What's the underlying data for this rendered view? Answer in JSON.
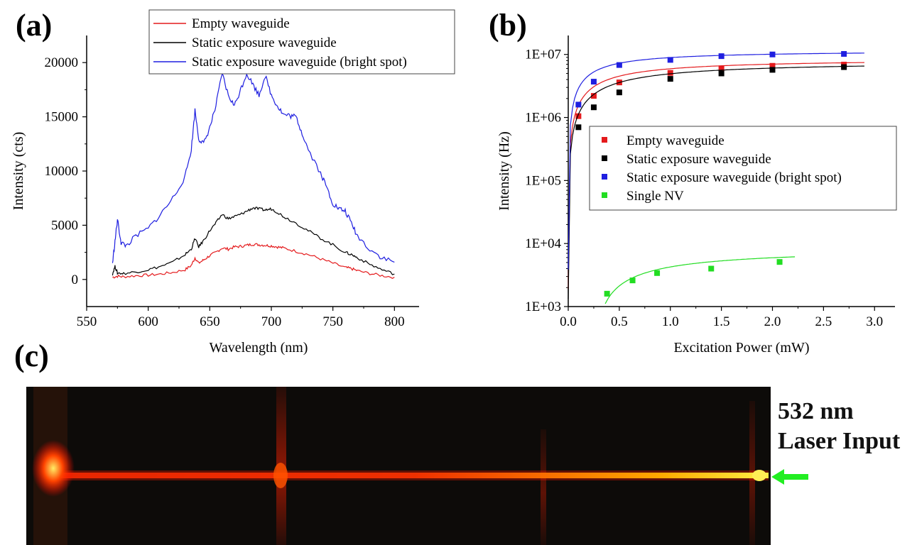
{
  "labels": {
    "a": "(a)",
    "b": "(b)",
    "c": "(c)"
  },
  "colors": {
    "empty": "#e41a1c",
    "static": "#000000",
    "bright": "#1f1fe0",
    "nv": "#22dd22",
    "arrow": "#22ee22"
  },
  "chart_data": [
    {
      "type": "line",
      "xlabel": "Wavelength (nm)",
      "ylabel": "Intensity (cts)",
      "xlim": [
        550,
        820
      ],
      "ylim": [
        -2500,
        22500
      ],
      "xticks": [
        550,
        600,
        650,
        700,
        750,
        800
      ],
      "yticks": [
        0,
        5000,
        10000,
        15000,
        20000
      ],
      "legend_position": "top-right",
      "series": [
        {
          "name": "Empty waveguide",
          "color_key": "empty",
          "x": [
            571,
            575,
            580,
            590,
            600,
            610,
            620,
            630,
            635,
            638,
            641,
            645,
            650,
            655,
            660,
            665,
            670,
            675,
            680,
            685,
            690,
            695,
            700,
            705,
            710,
            720,
            730,
            740,
            750,
            760,
            765,
            770,
            780,
            790,
            800
          ],
          "y": [
            200,
            300,
            250,
            350,
            400,
            500,
            650,
            900,
            1300,
            2000,
            1500,
            1800,
            2200,
            2500,
            2900,
            2800,
            3000,
            3050,
            3150,
            3250,
            3200,
            3150,
            3100,
            3000,
            2900,
            2600,
            2300,
            1900,
            1500,
            1100,
            1000,
            800,
            550,
            350,
            200
          ]
        },
        {
          "name": "Static exposure waveguide",
          "color_key": "static",
          "x": [
            571,
            573,
            575,
            580,
            590,
            600,
            610,
            620,
            630,
            635,
            638,
            641,
            645,
            650,
            655,
            660,
            665,
            670,
            675,
            680,
            685,
            690,
            695,
            700,
            705,
            710,
            720,
            730,
            740,
            750,
            760,
            765,
            770,
            780,
            790,
            800
          ],
          "y": [
            500,
            1200,
            600,
            550,
            700,
            900,
            1200,
            1600,
            2300,
            2800,
            3800,
            3000,
            3600,
            4500,
            5200,
            6000,
            5600,
            5800,
            6000,
            6300,
            6600,
            6500,
            6400,
            6500,
            6200,
            5800,
            5200,
            4500,
            3800,
            3200,
            2500,
            2300,
            2000,
            1400,
            900,
            500
          ]
        },
        {
          "name": "Static exposure waveguide (bright spot)",
          "color_key": "bright",
          "x": [
            571,
            573,
            575,
            578,
            582,
            590,
            600,
            610,
            620,
            630,
            635,
            638,
            641,
            645,
            650,
            655,
            660,
            665,
            670,
            675,
            680,
            685,
            690,
            695,
            700,
            705,
            710,
            715,
            720,
            725,
            730,
            740,
            745,
            750,
            755,
            760,
            765,
            770,
            780,
            790,
            800
          ],
          "y": [
            1500,
            3500,
            5500,
            3400,
            3100,
            4000,
            4700,
            6000,
            7500,
            9500,
            12000,
            15600,
            13000,
            12500,
            14000,
            16000,
            19000,
            17000,
            16000,
            17500,
            19000,
            18000,
            17000,
            18800,
            17000,
            16000,
            15200,
            15100,
            15000,
            13500,
            12000,
            9800,
            8500,
            7000,
            6500,
            6300,
            5200,
            4000,
            2800,
            2000,
            1600
          ]
        }
      ]
    },
    {
      "type": "scatter",
      "xlabel": "Excitation Power (mW)",
      "ylabel": "Intensity (Hz)",
      "xlim": [
        0,
        3.2
      ],
      "ylim": [
        1000,
        20000000
      ],
      "yscale": "log",
      "xticks": [
        "0.0",
        "0.5",
        "1.0",
        "1.5",
        "2.0",
        "2.5",
        "3.0"
      ],
      "yticks": [
        "1E+03",
        "1E+04",
        "1E+05",
        "1E+06",
        "1E+07"
      ],
      "legend_position": "center-right",
      "series": [
        {
          "name": "Empty waveguide",
          "color_key": "empty",
          "sat": 8600000,
          "psat": 0.45,
          "fit_xmax": 2.9,
          "x": [
            0.1,
            0.25,
            0.5,
            1.0,
            1.5,
            2.0,
            2.7
          ],
          "y": [
            1050000,
            2200000,
            3600000,
            5100000,
            6000000,
            6600000,
            6900000
          ]
        },
        {
          "name": "Static exposure waveguide",
          "color_key": "static",
          "sat": 7900000,
          "psat": 0.6,
          "fit_xmax": 2.9,
          "x": [
            0.1,
            0.25,
            0.5,
            1.0,
            1.5,
            2.0,
            2.7
          ],
          "y": [
            700000,
            1450000,
            2500000,
            4100000,
            5000000,
            5700000,
            6300000
          ]
        },
        {
          "name": "Static exposure waveguide (bright spot)",
          "color_key": "bright",
          "sat": 11600000,
          "psat": 0.3,
          "fit_xmax": 2.9,
          "x": [
            0.1,
            0.25,
            0.5,
            1.0,
            1.5,
            2.0,
            2.7
          ],
          "y": [
            1600000,
            3700000,
            6800000,
            8200000,
            9400000,
            10000000,
            10200000
          ]
        },
        {
          "name": "Single NV",
          "color_key": "nv",
          "sat": 6800000,
          "psat": 0.75,
          "offset": 0.25,
          "scale": 0.00125,
          "fit_xmax": 2.22,
          "x": [
            0.38,
            0.63,
            0.87,
            1.4,
            2.07
          ],
          "y": [
            1600,
            2600,
            3400,
            4000,
            5100
          ]
        }
      ]
    }
  ],
  "photo": {
    "caption_line1": "532 nm",
    "caption_line2": "Laser Input"
  }
}
